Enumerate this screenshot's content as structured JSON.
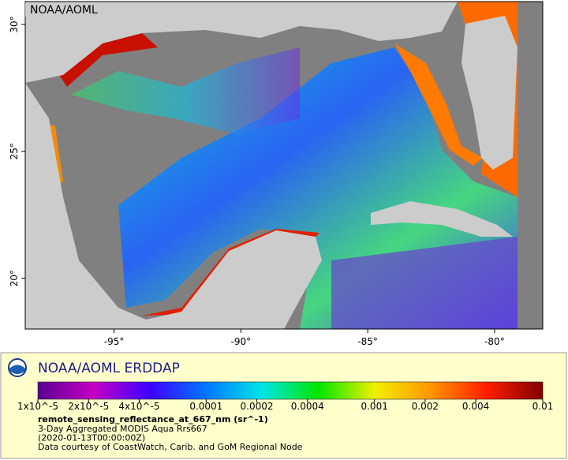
{
  "map": {
    "watermark": "NOAA/AOML",
    "xlim": [
      -98.5,
      -78.1
    ],
    "ylim": [
      18,
      30.9
    ],
    "xticks": [
      {
        "value": -95,
        "label": "-95°"
      },
      {
        "value": -90,
        "label": "-90°"
      },
      {
        "value": -85,
        "label": "-85°"
      },
      {
        "value": -80,
        "label": "-80°"
      }
    ],
    "yticks": [
      {
        "value": 20,
        "label": "20°"
      },
      {
        "value": 25,
        "label": "25°"
      },
      {
        "value": 30,
        "label": "30°"
      }
    ]
  },
  "legend": {
    "title": "NOAA/AOML ERDDAP",
    "variable": "remote_sensing_reflectance_at_667_nm (sr^-1)",
    "lines": [
      "3-Day Aggregated MODIS Aqua Rrs667",
      "(2020-01-13T00:00:00Z)",
      "Data courtesy of CoastWatch, Carib. and GoM Regional Node"
    ],
    "colorbar": {
      "scale": "log",
      "clim": [
        1e-05,
        0.01
      ],
      "colors": [
        "#5a0094",
        "#c400c4",
        "#3c00ff",
        "#0078ff",
        "#00e6e6",
        "#00e600",
        "#f0f000",
        "#ff9600",
        "#ff1e00",
        "#800000"
      ],
      "ticks": [
        {
          "value": 1e-05,
          "label": "1x10^-5"
        },
        {
          "value": 2e-05,
          "label": "2x10^-5"
        },
        {
          "value": 4e-05,
          "label": "4x10^-5"
        },
        0.0001,
        0.0002,
        0.0004,
        0.001,
        0.002,
        0.004,
        0.01
      ]
    }
  }
}
